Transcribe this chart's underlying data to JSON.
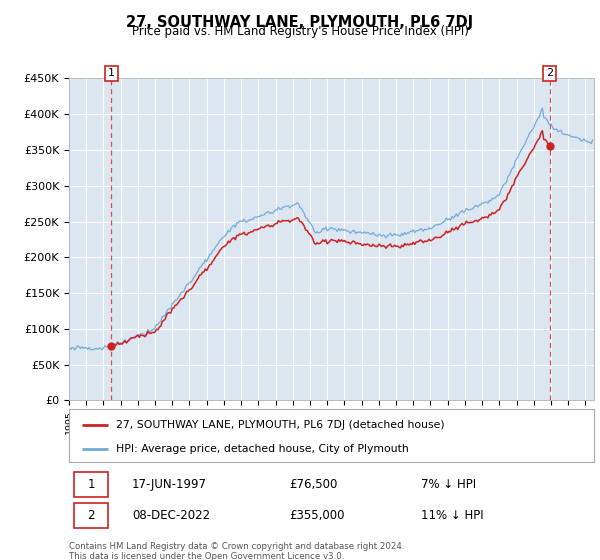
{
  "title": "27, SOUTHWAY LANE, PLYMOUTH, PL6 7DJ",
  "subtitle": "Price paid vs. HM Land Registry's House Price Index (HPI)",
  "sale1_date": "17-JUN-1997",
  "sale1_price": 76500,
  "sale1_label": "7% ↓ HPI",
  "sale2_date": "08-DEC-2022",
  "sale2_price": 355000,
  "sale2_label": "11% ↓ HPI",
  "legend_line1": "27, SOUTHWAY LANE, PLYMOUTH, PL6 7DJ (detached house)",
  "legend_line2": "HPI: Average price, detached house, City of Plymouth",
  "footer": "Contains HM Land Registry data © Crown copyright and database right 2024.\nThis data is licensed under the Open Government Licence v3.0.",
  "hpi_color": "#6fa8d4",
  "price_color": "#cc2222",
  "background_color": "#dce6f1",
  "ylim": [
    0,
    450000
  ],
  "yticks": [
    0,
    50000,
    100000,
    150000,
    200000,
    250000,
    300000,
    350000,
    400000,
    450000
  ],
  "ytick_labels": [
    "£0",
    "£50K",
    "£100K",
    "£150K",
    "£200K",
    "£250K",
    "£300K",
    "£350K",
    "£400K",
    "£450K"
  ],
  "sale1_x": 1997.46,
  "sale2_x": 2022.93,
  "xmin": 1995.0,
  "xmax": 2025.5
}
